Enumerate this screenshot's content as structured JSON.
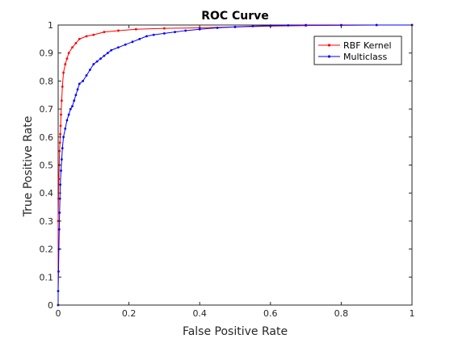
{
  "chart_data": {
    "type": "line",
    "title": "ROC Curve",
    "xlabel": "False Positive Rate",
    "ylabel": "True Positive Rate",
    "xlim": [
      0,
      1
    ],
    "ylim": [
      0,
      1
    ],
    "xticks": [
      "0",
      "0.2",
      "0.4",
      "0.6",
      "0.8",
      "1"
    ],
    "yticks": [
      "0",
      "0.1",
      "0.2",
      "0.3",
      "0.4",
      "0.5",
      "0.6",
      "0.7",
      "0.8",
      "0.9",
      "1"
    ],
    "grid": false,
    "legend_position": "top-right",
    "series": [
      {
        "name": "RBF Kernel",
        "color": "#ff0000",
        "x": [
          0,
          0,
          0.001,
          0.002,
          0.003,
          0.004,
          0.005,
          0.006,
          0.007,
          0.008,
          0.01,
          0.012,
          0.015,
          0.02,
          0.025,
          0.03,
          0.04,
          0.05,
          0.06,
          0.08,
          0.1,
          0.13,
          0.17,
          0.22,
          0.3,
          0.4,
          0.5,
          0.6,
          0.7,
          0.8,
          0.9,
          1
        ],
        "y": [
          0,
          0.3,
          0.38,
          0.45,
          0.5,
          0.55,
          0.58,
          0.61,
          0.64,
          0.68,
          0.73,
          0.78,
          0.83,
          0.86,
          0.88,
          0.9,
          0.92,
          0.935,
          0.95,
          0.96,
          0.965,
          0.975,
          0.98,
          0.985,
          0.988,
          0.99,
          0.993,
          0.996,
          0.998,
          0.999,
          1,
          1
        ]
      },
      {
        "name": "Multiclass",
        "color": "#0000ff",
        "x": [
          0,
          0,
          0.001,
          0.002,
          0.003,
          0.004,
          0.005,
          0.006,
          0.008,
          0.01,
          0.012,
          0.015,
          0.02,
          0.025,
          0.03,
          0.035,
          0.04,
          0.045,
          0.05,
          0.055,
          0.06,
          0.07,
          0.08,
          0.09,
          0.1,
          0.11,
          0.12,
          0.13,
          0.14,
          0.15,
          0.17,
          0.19,
          0.21,
          0.23,
          0.25,
          0.27,
          0.3,
          0.33,
          0.36,
          0.4,
          0.45,
          0.5,
          0.55,
          0.6,
          0.65,
          0.7,
          0.8,
          0.9,
          1
        ],
        "y": [
          0,
          0.05,
          0.12,
          0.2,
          0.27,
          0.33,
          0.38,
          0.43,
          0.48,
          0.52,
          0.56,
          0.6,
          0.63,
          0.66,
          0.68,
          0.7,
          0.71,
          0.73,
          0.75,
          0.77,
          0.79,
          0.8,
          0.82,
          0.84,
          0.86,
          0.87,
          0.88,
          0.89,
          0.9,
          0.91,
          0.92,
          0.93,
          0.94,
          0.95,
          0.96,
          0.965,
          0.97,
          0.975,
          0.98,
          0.985,
          0.99,
          0.993,
          0.996,
          0.998,
          0.999,
          1,
          1,
          1,
          1
        ]
      }
    ]
  }
}
